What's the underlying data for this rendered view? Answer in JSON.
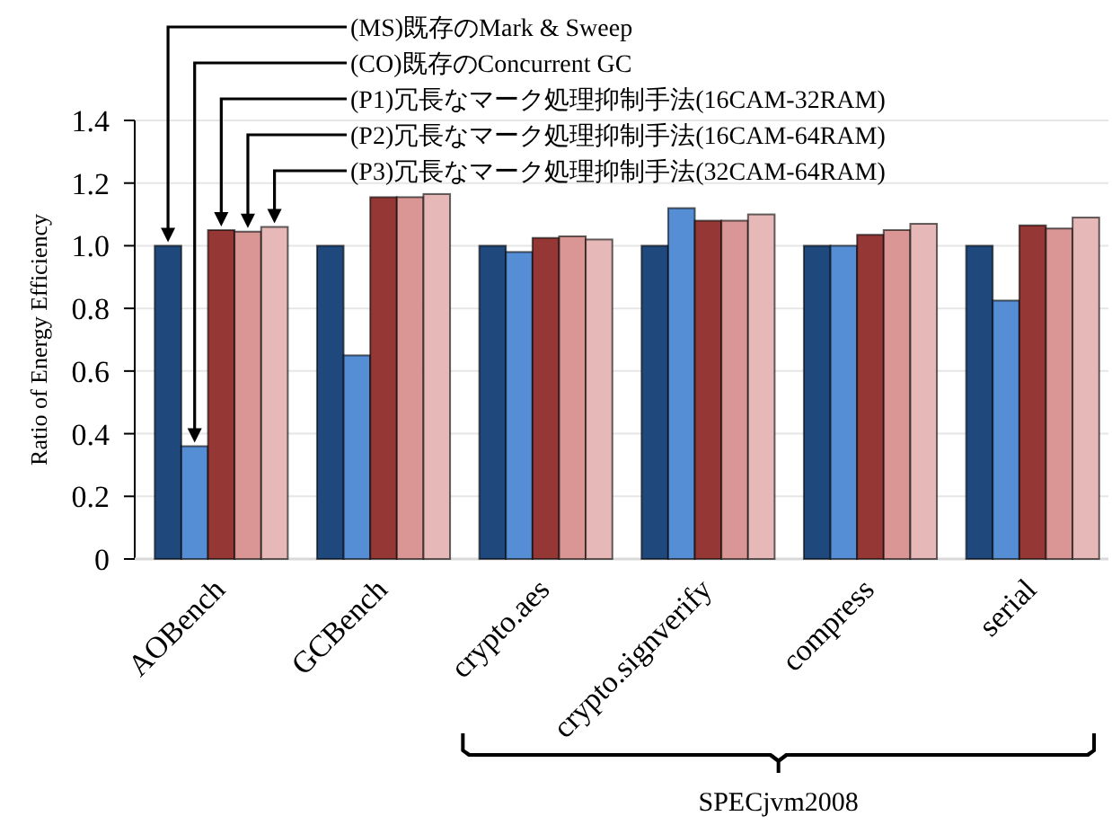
{
  "chart_data": {
    "type": "bar",
    "ylabel": "Ratio of Energy Efficiency",
    "categories": [
      "AOBench",
      "GCBench",
      "crypto.aes",
      "crypto.signverify",
      "compress",
      "serial"
    ],
    "series": [
      {
        "name": "(MS)既存のMark & Sweep",
        "color": "#1f497d",
        "values": [
          1.0,
          1.0,
          1.0,
          1.0,
          1.0,
          1.0
        ]
      },
      {
        "name": "(CO)既存のConcurrent GC",
        "color": "#558ed5",
        "values": [
          0.36,
          0.65,
          0.98,
          1.12,
          1.0,
          0.825
        ]
      },
      {
        "name": "(P1)冗長なマーク処理抑制手法(16CAM-32RAM)",
        "color": "#953735",
        "values": [
          1.05,
          1.155,
          1.025,
          1.08,
          1.035,
          1.065
        ]
      },
      {
        "name": "(P2)冗長なマーク処理抑制手法(16CAM-64RAM)",
        "color": "#d99694",
        "values": [
          1.045,
          1.155,
          1.03,
          1.08,
          1.05,
          1.055
        ]
      },
      {
        "name": "(P3)冗長なマーク処理抑制手法(32CAM-64RAM)",
        "color": "#e6b9b8",
        "values": [
          1.06,
          1.165,
          1.02,
          1.1,
          1.07,
          1.09
        ]
      }
    ],
    "ylim": [
      0,
      1.4
    ],
    "yticks": [
      0,
      0.2,
      0.4,
      0.6,
      0.8,
      {
        "value": 1,
        "label": "1.0"
      },
      1.2,
      1.4
    ],
    "grid": "y",
    "annotations": [
      "SPECjvm2008"
    ]
  }
}
